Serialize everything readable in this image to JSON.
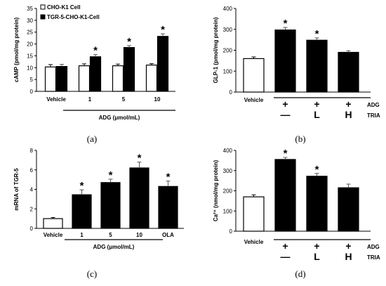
{
  "chart_data": [
    {
      "type": "bar",
      "panel": "a",
      "caption": "(a)",
      "ylabel": "cAMP (pmol/mg protein)",
      "xlabel": "ADG (μmol/mL)",
      "ylim": [
        0,
        35
      ],
      "yticks": [
        0,
        5,
        10,
        15,
        20,
        25,
        30,
        35
      ],
      "categories": [
        "Vehicle",
        "1",
        "5",
        "10"
      ],
      "legend": {
        "position": "top-left"
      },
      "series": [
        {
          "name": "CHO-K1 Cell",
          "fill": "#ffffff",
          "values": [
            10.3,
            10.8,
            10.8,
            11.1
          ],
          "errors": [
            1.0,
            0.8,
            0.7,
            0.6
          ],
          "stars": [
            false,
            false,
            false,
            false
          ]
        },
        {
          "name": "TGR-5-CHO-K1-Cell",
          "fill": "#000000",
          "values": [
            10.5,
            14.6,
            18.5,
            23.2
          ],
          "errors": [
            0.9,
            0.9,
            0.8,
            1.1
          ],
          "stars": [
            false,
            true,
            true,
            true
          ]
        }
      ]
    },
    {
      "type": "bar",
      "panel": "b",
      "caption": "(b)",
      "ylabel": "GLP-1 (pmol/mg protein)",
      "ylim": [
        0,
        400
      ],
      "yticks": [
        0,
        100,
        200,
        300,
        400
      ],
      "categories": [
        "Vehicle",
        "",
        "",
        ""
      ],
      "values": [
        160,
        297,
        248,
        190
      ],
      "errors": [
        8,
        12,
        11,
        8
      ],
      "fills": [
        "#ffffff",
        "#000000",
        "#000000",
        "#000000"
      ],
      "stars": [
        false,
        true,
        true,
        false
      ],
      "treatment_rows": [
        {
          "label": "ADG",
          "values": [
            "",
            "+",
            "+",
            "+"
          ]
        },
        {
          "label": "TRIA",
          "values": [
            "",
            "—",
            "L",
            "H"
          ]
        }
      ]
    },
    {
      "type": "bar",
      "panel": "c",
      "caption": "(c)",
      "ylabel": "mRNA of TGR-5",
      "xlabel": "ADG (μmol/mL)",
      "ylim": [
        0,
        8
      ],
      "yticks": [
        0,
        2,
        4,
        6,
        8
      ],
      "categories": [
        "Vehicle",
        "1",
        "5",
        "10",
        "OLA"
      ],
      "values": [
        1.0,
        3.45,
        4.7,
        6.2,
        4.3
      ],
      "errors": [
        0.12,
        0.5,
        0.35,
        0.6,
        0.55
      ],
      "fills": [
        "#ffffff",
        "#000000",
        "#000000",
        "#000000",
        "#000000"
      ],
      "stars": [
        false,
        true,
        true,
        true,
        true
      ]
    },
    {
      "type": "bar",
      "panel": "d",
      "caption": "(d)",
      "ylabel": "Ca²⁺ (nmol/mg protein)",
      "ylim": [
        0,
        400
      ],
      "yticks": [
        0,
        100,
        200,
        300,
        400
      ],
      "categories": [
        "Vehicle",
        "",
        "",
        ""
      ],
      "values": [
        170,
        355,
        272,
        215
      ],
      "errors": [
        10,
        10,
        14,
        18
      ],
      "fills": [
        "#ffffff",
        "#000000",
        "#000000",
        "#000000"
      ],
      "stars": [
        false,
        true,
        true,
        false
      ],
      "treatment_rows": [
        {
          "label": "ADG",
          "values": [
            "",
            "+",
            "+",
            "+"
          ]
        },
        {
          "label": "TRIA",
          "values": [
            "",
            "—",
            "L",
            "H"
          ]
        }
      ]
    }
  ]
}
